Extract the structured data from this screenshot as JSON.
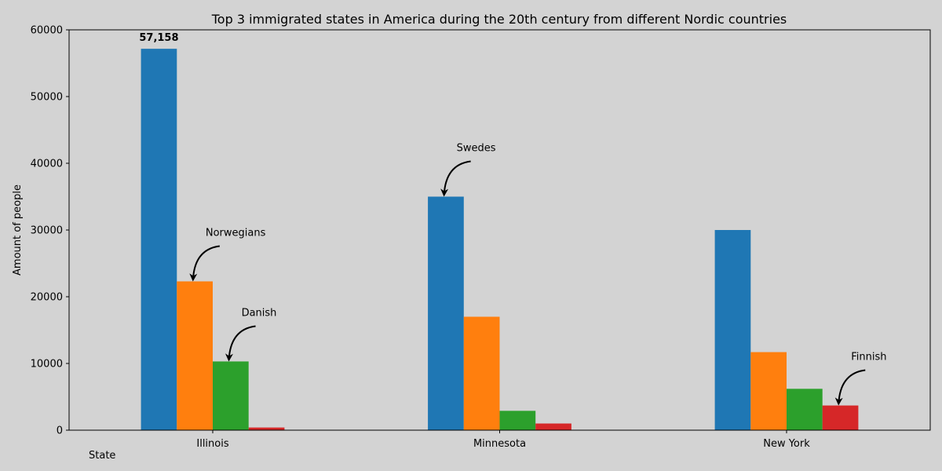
{
  "chart_data": {
    "type": "bar",
    "title": "Top 3 immigrated states in America during the 20th century from different Nordic countries",
    "xlabel": "State",
    "ylabel": "Amount of people",
    "categories": [
      "Illinois",
      "Minnesota",
      "New York"
    ],
    "ylim": [
      0,
      60000
    ],
    "yticks": [
      "0",
      "10000",
      "20000",
      "30000",
      "40000",
      "50000",
      "60000"
    ],
    "grid": false,
    "series": [
      {
        "values": [
          57158,
          35000,
          30000
        ],
        "color": "#1f77b4"
      },
      {
        "values": [
          22300,
          17000,
          11700
        ],
        "color": "#ff7f0e"
      },
      {
        "values": [
          10300,
          2900,
          6200
        ],
        "color": "#2ca02c"
      },
      {
        "values": [
          400,
          1000,
          3700
        ],
        "color": "#d62728"
      }
    ],
    "value_label": {
      "text": "57,158",
      "series": 0,
      "category": 0
    },
    "annotations": [
      {
        "text": "Norwegians",
        "series": 1,
        "category": 0,
        "value": 22300
      },
      {
        "text": "Danish",
        "series": 2,
        "category": 0,
        "value": 10300
      },
      {
        "text": "Swedes",
        "series": 0,
        "category": 1,
        "value": 35000
      },
      {
        "text": "Finnish",
        "series": 3,
        "category": 2,
        "value": 3700
      }
    ]
  }
}
